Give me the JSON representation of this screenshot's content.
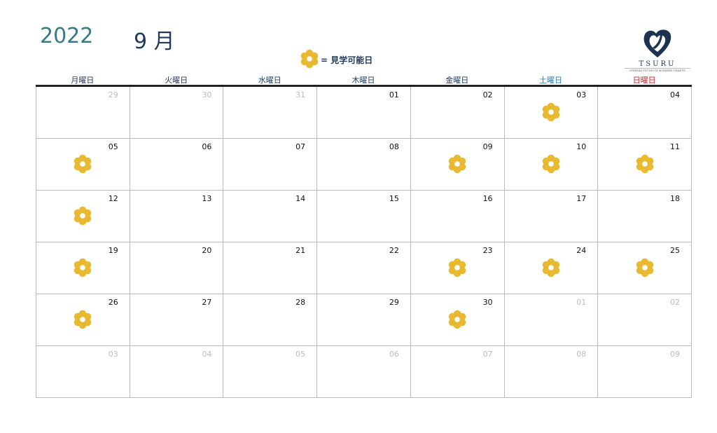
{
  "header": {
    "year": "2022",
    "month": "9 月",
    "legend_label": "= 見学可能日",
    "logo_name": "TSURU",
    "logo_tagline": "OSHIMA-TSUMUGI MODERN CRAFTS"
  },
  "colors": {
    "flower": "#e8b931",
    "saturday": "#2a7ab0",
    "sunday": "#d0202a"
  },
  "weekdays": [
    "月曜日",
    "火曜日",
    "水曜日",
    "木曜日",
    "金曜日",
    "土曜日",
    "日曜日"
  ],
  "weeks": [
    [
      {
        "d": "29",
        "o": true
      },
      {
        "d": "30",
        "o": true
      },
      {
        "d": "31",
        "o": true
      },
      {
        "d": "01"
      },
      {
        "d": "02"
      },
      {
        "d": "03",
        "f": true
      },
      {
        "d": "04"
      }
    ],
    [
      {
        "d": "05",
        "f": true
      },
      {
        "d": "06"
      },
      {
        "d": "07"
      },
      {
        "d": "08"
      },
      {
        "d": "09",
        "f": true
      },
      {
        "d": "10",
        "f": true
      },
      {
        "d": "11",
        "f": true
      }
    ],
    [
      {
        "d": "12",
        "f": true
      },
      {
        "d": "13"
      },
      {
        "d": "14"
      },
      {
        "d": "15"
      },
      {
        "d": "16"
      },
      {
        "d": "17"
      },
      {
        "d": "18"
      }
    ],
    [
      {
        "d": "19",
        "f": true
      },
      {
        "d": "20"
      },
      {
        "d": "21"
      },
      {
        "d": "22"
      },
      {
        "d": "23",
        "f": true
      },
      {
        "d": "24",
        "f": true
      },
      {
        "d": "25",
        "f": true
      }
    ],
    [
      {
        "d": "26",
        "f": true
      },
      {
        "d": "27"
      },
      {
        "d": "28"
      },
      {
        "d": "29"
      },
      {
        "d": "30",
        "f": true
      },
      {
        "d": "01",
        "o": true
      },
      {
        "d": "02",
        "o": true
      }
    ],
    [
      {
        "d": "03",
        "o": true
      },
      {
        "d": "04",
        "o": true
      },
      {
        "d": "05",
        "o": true
      },
      {
        "d": "06",
        "o": true
      },
      {
        "d": "07",
        "o": true
      },
      {
        "d": "08",
        "o": true
      },
      {
        "d": "09",
        "o": true
      }
    ]
  ]
}
